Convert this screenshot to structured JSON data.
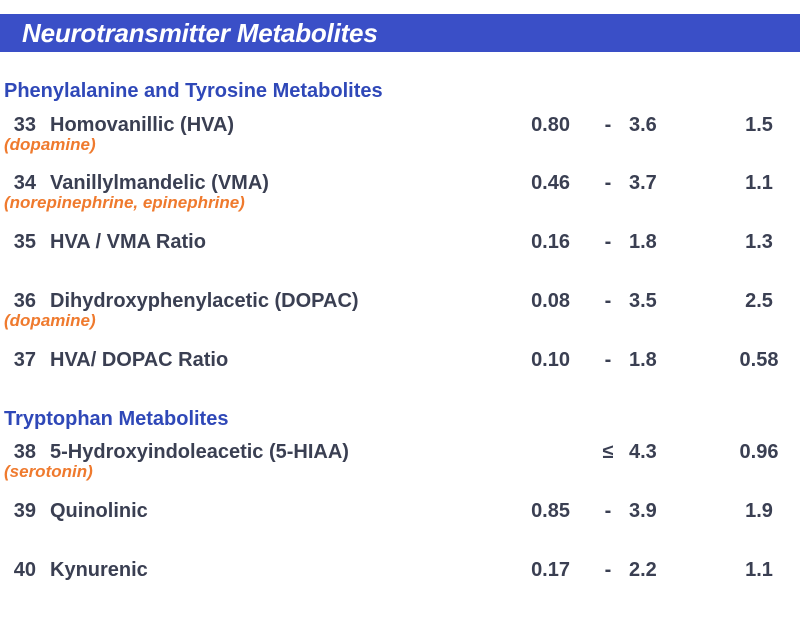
{
  "banner": {
    "title": "Neurotransmitter Metabolites"
  },
  "sections": [
    {
      "title": "Phenylalanine and Tyrosine Metabolites"
    },
    {
      "title": "Tryptophan Metabolites"
    }
  ],
  "rows": [
    {
      "num": "33",
      "name": "Homovanillic (HVA)",
      "sub": "(dopamine)",
      "low": "0.80",
      "sep": "-",
      "high": "3.6",
      "value": "1.5"
    },
    {
      "num": "34",
      "name": "Vanillylmandelic (VMA)",
      "sub": "(norepinephrine, epinephrine)",
      "low": "0.46",
      "sep": "-",
      "high": "3.7",
      "value": "1.1"
    },
    {
      "num": "35",
      "name": "HVA / VMA Ratio",
      "sub": "",
      "low": "0.16",
      "sep": "-",
      "high": "1.8",
      "value": "1.3"
    },
    {
      "num": "36",
      "name": "Dihydroxyphenylacetic (DOPAC)",
      "sub": "(dopamine)",
      "low": "0.08",
      "sep": "-",
      "high": "3.5",
      "value": "2.5"
    },
    {
      "num": "37",
      "name": "HVA/ DOPAC Ratio",
      "sub": "",
      "low": "0.10",
      "sep": "-",
      "high": "1.8",
      "value": "0.58"
    },
    {
      "num": "38",
      "name": "5-Hydroxyindoleacetic (5-HIAA)",
      "sub": "(serotonin)",
      "low": "",
      "sep": "≤",
      "high": "4.3",
      "value": "0.96"
    },
    {
      "num": "39",
      "name": "Quinolinic",
      "sub": "",
      "low": "0.85",
      "sep": "-",
      "high": "3.9",
      "value": "1.9"
    },
    {
      "num": "40",
      "name": "Kynurenic",
      "sub": "",
      "low": "0.17",
      "sep": "-",
      "high": "2.2",
      "value": "1.1"
    }
  ]
}
